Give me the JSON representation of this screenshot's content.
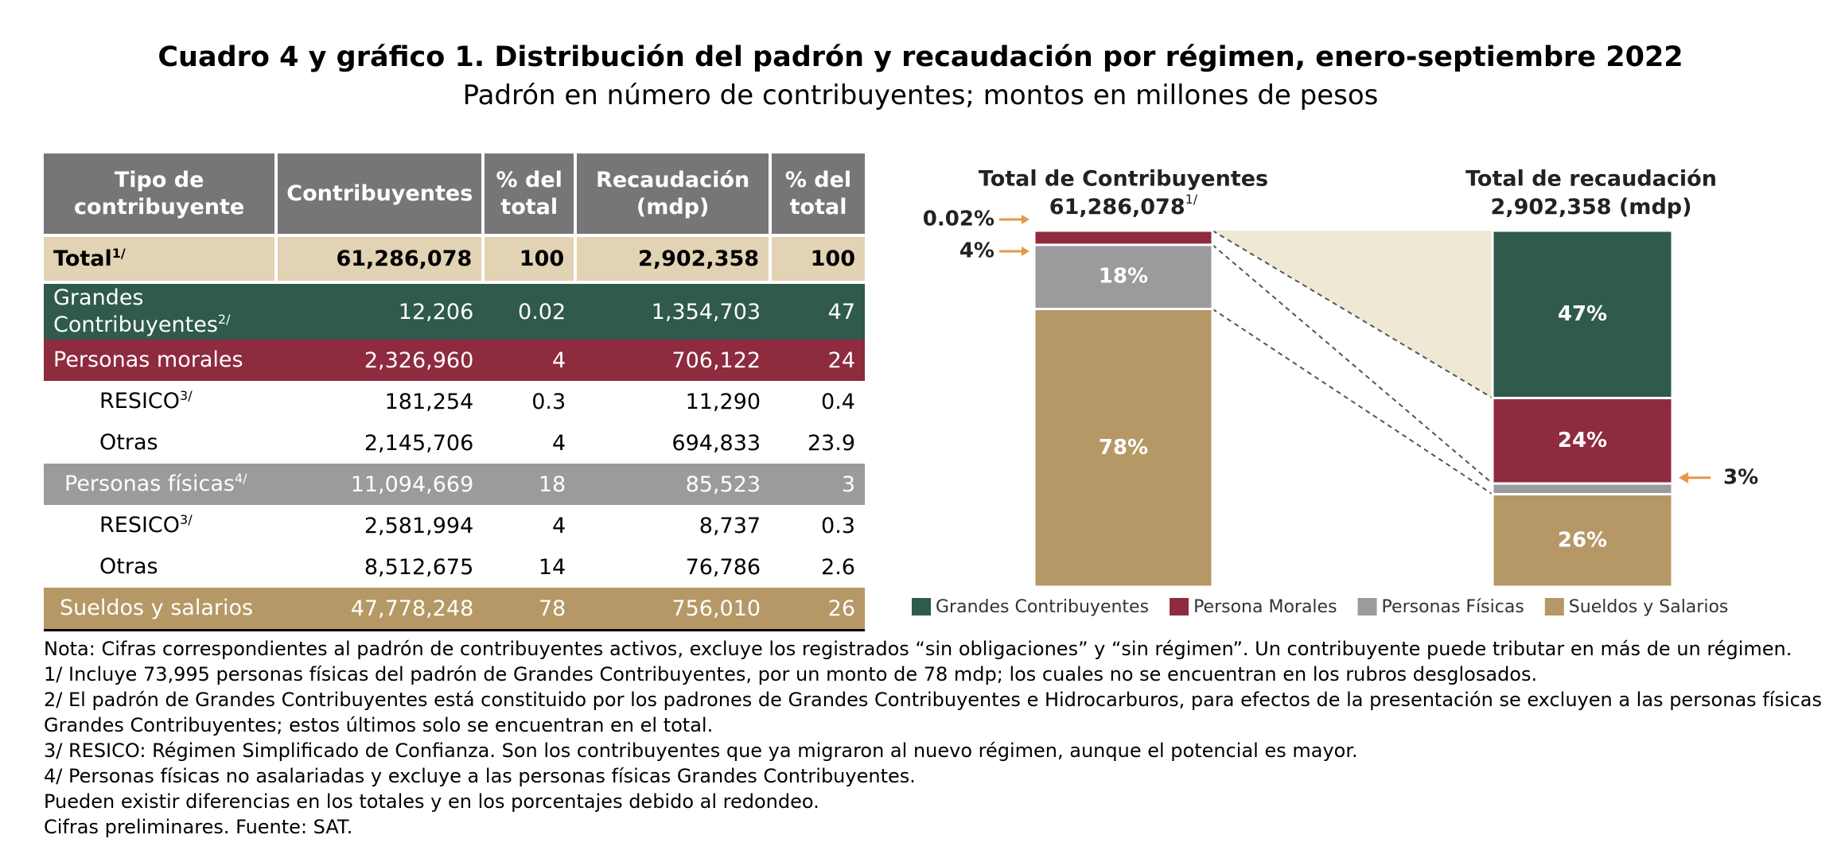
{
  "header": {
    "title": "Cuadro 4 y gráfico 1. Distribución del padrón y recaudación por régimen, enero-septiembre 2022",
    "subtitle": "Padrón en número de contribuyentes; montos en millones de pesos"
  },
  "table": {
    "columns": [
      "Tipo de contribuyente",
      "Contribuyentes",
      "% del total",
      "Recaudación (mdp)",
      "% del total"
    ],
    "rows": [
      {
        "label": "Total",
        "sup": "1/",
        "values": [
          "61,286,078",
          "100",
          "2,902,358",
          "100"
        ]
      },
      {
        "label": "Grandes Contribuyentes",
        "sup": "2/",
        "values": [
          "12,206",
          "0.02",
          "1,354,703",
          "47"
        ]
      },
      {
        "label": "Personas morales",
        "values": [
          "2,326,960",
          "4",
          "706,122",
          "24"
        ]
      },
      {
        "label": "RESICO",
        "sup": "3/",
        "values": [
          "181,254",
          "0.3",
          "11,290",
          "0.4"
        ]
      },
      {
        "label": "Otras",
        "values": [
          "2,145,706",
          "4",
          "694,833",
          "23.9"
        ]
      },
      {
        "label": "Personas físicas",
        "sup": "4/",
        "values": [
          "11,094,669",
          "18",
          "85,523",
          "3"
        ]
      },
      {
        "label": "RESICO",
        "sup": "3/",
        "values": [
          "2,581,994",
          "4",
          "8,737",
          "0.3"
        ]
      },
      {
        "label": "Otras",
        "values": [
          "8,512,675",
          "14",
          "76,786",
          "2.6"
        ]
      },
      {
        "label": "Sueldos y salarios",
        "values": [
          "47,778,248",
          "78",
          "756,010",
          "26"
        ]
      }
    ]
  },
  "chart_data": {
    "type": "stacked_bar",
    "categories": [
      "Total de Contribuyentes",
      "Total de recaudación"
    ],
    "category_totals": [
      "61,286,078",
      "2,902,358 (mdp)"
    ],
    "category_total_sups": [
      "1/",
      null
    ],
    "series": [
      {
        "name": "Grandes Contribuyentes",
        "color": "#2f5a4c",
        "values": [
          0.02,
          47
        ],
        "value_labels": [
          "0.02%",
          "47%"
        ]
      },
      {
        "name": "Persona Morales",
        "color": "#8e2b3e",
        "values": [
          4,
          24
        ],
        "value_labels": [
          "4%",
          "24%"
        ]
      },
      {
        "name": "Personas Físicas",
        "color": "#9b9a9c",
        "values": [
          18,
          3
        ],
        "value_labels": [
          "18%",
          "3%"
        ]
      },
      {
        "name": "Sueldos y Salarios",
        "color": "#b59865",
        "values": [
          78,
          26
        ],
        "value_labels": [
          "78%",
          "26%"
        ]
      }
    ],
    "ylim": [
      0,
      100
    ],
    "legend": "bottom"
  },
  "notes": [
    "Nota: Cifras correspondientes al padrón de contribuyentes activos, excluye los registrados “sin obligaciones” y “sin régimen”. Un contribuyente puede tributar en más de un régimen.",
    "1/ Incluye 73,995 personas físicas del padrón de Grandes Contribuyentes, por un monto de 78 mdp; los cuales no se encuentran en los rubros desglosados.",
    "2/ El padrón de Grandes Contribuyentes está constituido por los padrones de Grandes Contribuyentes e Hidrocarburos, para efectos de la presentación se excluyen a las personas físicas Grandes Contribuyentes; estos últimos solo se encuentran en el total.",
    "3/ RESICO: Régimen Simplificado de Confianza. Son los contribuyentes que ya migraron al nuevo régimen, aunque el potencial es mayor.",
    "4/ Personas físicas no asalariadas y excluye a las personas físicas Grandes Contribuyentes.",
    "Pueden existir diferencias en los totales y en los porcentajes debido al redondeo.",
    "Cifras preliminares. Fuente: SAT."
  ]
}
